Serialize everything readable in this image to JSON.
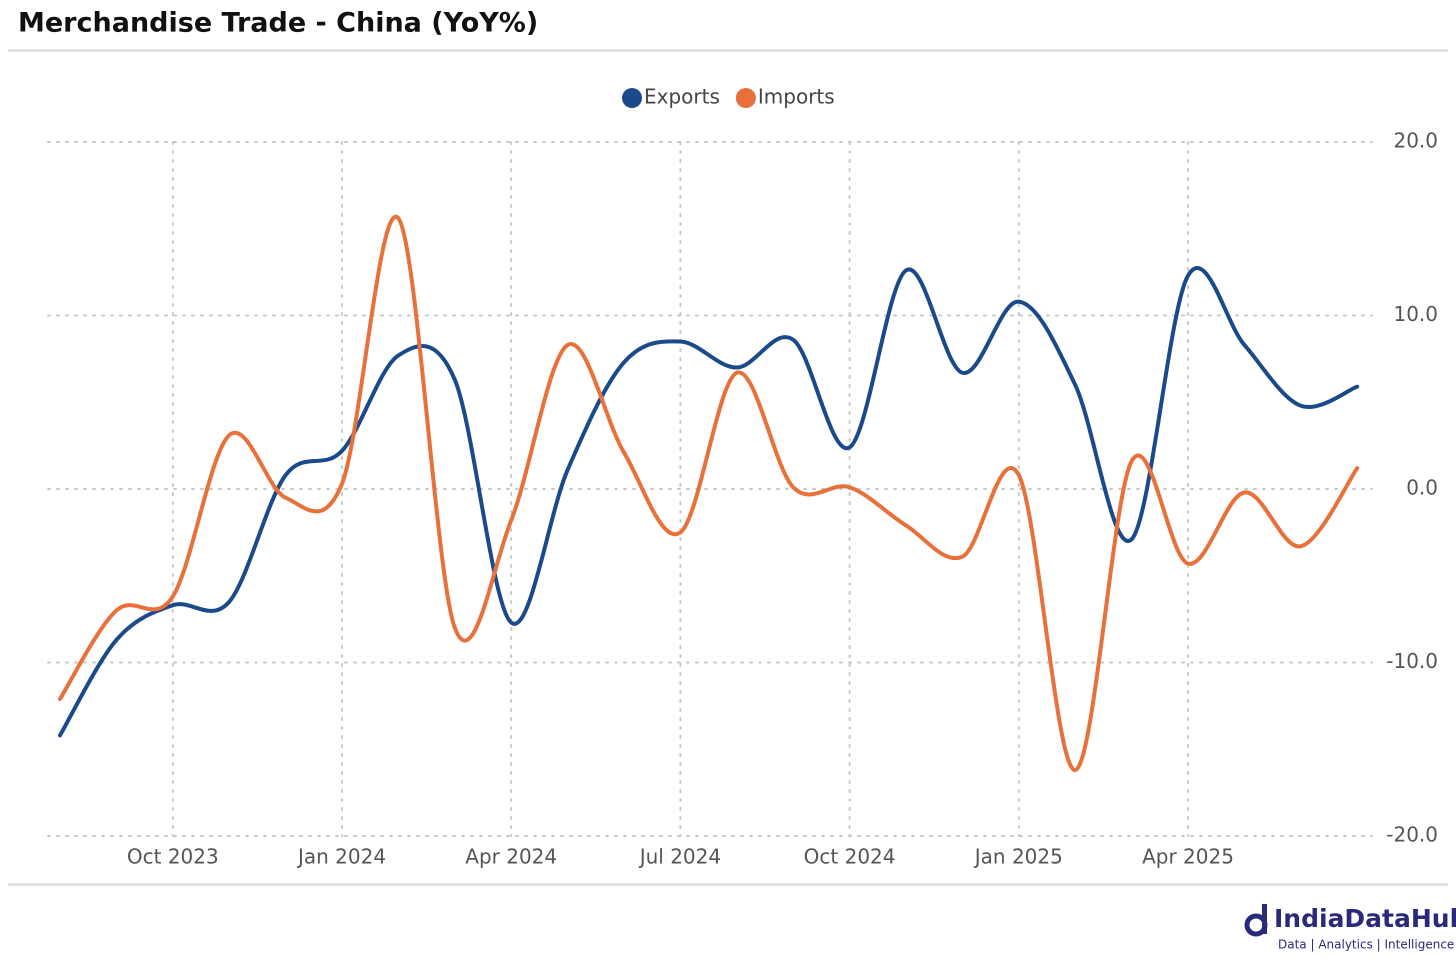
{
  "chart_data": {
    "type": "line",
    "title": "Merchandise Trade - China (YoY%)",
    "categories": [
      null,
      null,
      "Oct 2023",
      null,
      null,
      "Jan 2024",
      null,
      null,
      "Apr 2024",
      null,
      null,
      "Jul 2024",
      null,
      null,
      "Oct 2024",
      null,
      null,
      "Jan 2025",
      null,
      null,
      "Apr 2025",
      null,
      null,
      null
    ],
    "series": [
      {
        "name": "Exports",
        "color": "#1a4a8a",
        "values": [
          -14.2,
          -8.7,
          -6.7,
          -6.5,
          0.8,
          2.2,
          7.7,
          6.3,
          -7.7,
          1.1,
          7.3,
          8.5,
          7.0,
          8.6,
          2.4,
          12.6,
          6.7,
          10.8,
          6.0,
          -2.9,
          12.3,
          8.3,
          4.8,
          5.9
        ]
      },
      {
        "name": "Imports",
        "color": "#e8703a",
        "values": [
          -12.1,
          -7.0,
          -6.2,
          3.1,
          -0.5,
          0.3,
          15.6,
          -8.0,
          -1.8,
          8.3,
          2.1,
          -2.5,
          6.7,
          0.1,
          0.1,
          -2.1,
          -3.9,
          0.8,
          -16.2,
          1.6,
          -4.3,
          -0.2,
          -3.3,
          1.2
        ]
      }
    ],
    "ylim": [
      -20,
      20
    ],
    "yticks": [
      {
        "value": -20,
        "label": "-20.0"
      },
      {
        "value": -10,
        "label": "-10.0"
      },
      {
        "value": 0,
        "label": "0.0"
      },
      {
        "value": 10,
        "label": "10.0"
      },
      {
        "value": 20,
        "label": "20.0"
      }
    ],
    "grid": true,
    "legend": "top"
  },
  "brand": {
    "name": "IndiaDataHub",
    "tagline": "Data | Analytics | Intelligence"
  }
}
